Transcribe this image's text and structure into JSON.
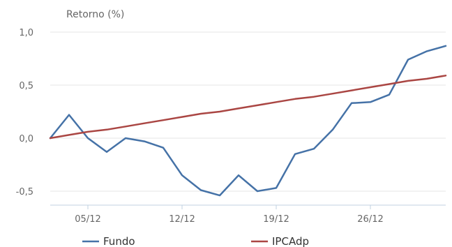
{
  "chart_data": {
    "type": "line",
    "ylabel": "Retorno (%)",
    "ylim": [
      -0.55,
      1.0
    ],
    "yticks": [
      1.0,
      0.5,
      0.0,
      -0.5
    ],
    "ytick_labels": [
      "1,0",
      "0,5",
      "0,0",
      "-0,5"
    ],
    "xrange": [
      0,
      21
    ],
    "xticks": [
      {
        "x": 2,
        "label": "05/12"
      },
      {
        "x": 7,
        "label": "12/12"
      },
      {
        "x": 12,
        "label": "19/12"
      },
      {
        "x": 17,
        "label": "26/12"
      }
    ],
    "grid": true,
    "legend_position": "bottom",
    "series": [
      {
        "name": "Fundo",
        "color": "#4572a7",
        "x": [
          0,
          1,
          2,
          3,
          4,
          5,
          6,
          7,
          8,
          9,
          10,
          11,
          12,
          13,
          14,
          15,
          16,
          17,
          18,
          19,
          20,
          21
        ],
        "values": [
          0.0,
          0.22,
          0.0,
          -0.13,
          0.0,
          -0.03,
          -0.09,
          -0.35,
          -0.49,
          -0.54,
          -0.35,
          -0.5,
          -0.47,
          -0.15,
          -0.1,
          0.08,
          0.33,
          0.34,
          0.41,
          0.74,
          0.82,
          0.87
        ]
      },
      {
        "name": "IPCAdp",
        "color": "#aa4643",
        "x": [
          0,
          1,
          2,
          3,
          4,
          5,
          6,
          7,
          8,
          9,
          10,
          11,
          12,
          13,
          14,
          15,
          16,
          17,
          18,
          19,
          20,
          21
        ],
        "values": [
          0.0,
          0.03,
          0.06,
          0.08,
          0.11,
          0.14,
          0.17,
          0.2,
          0.23,
          0.25,
          0.28,
          0.31,
          0.34,
          0.37,
          0.39,
          0.42,
          0.45,
          0.48,
          0.51,
          0.54,
          0.56,
          0.59
        ]
      }
    ]
  }
}
